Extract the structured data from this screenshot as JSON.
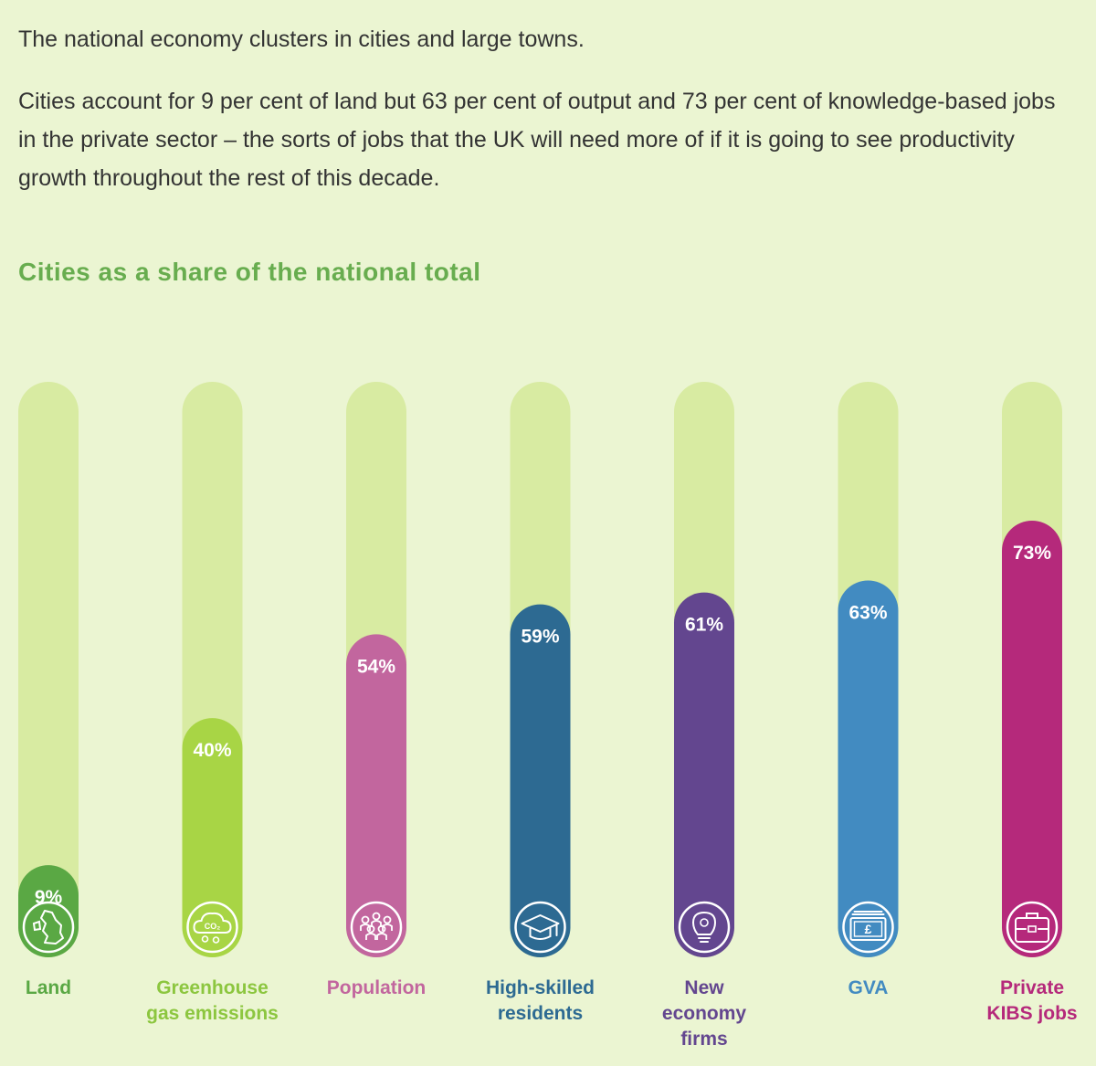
{
  "intro": {
    "paragraph1": "The national economy clusters in cities and large towns.",
    "paragraph2": "Cities account for 9 per cent of land but 63 per cent of output and 73 per cent of knowledge-based jobs in the private sector – the sorts of jobs that the UK will need more of if it is going to see productivity growth throughout the rest of this decade."
  },
  "colors": {
    "background": "#ebf5d2",
    "track": "#d8eba2",
    "title": "#68ad4f",
    "text": "#333333"
  },
  "chart_data": {
    "type": "bar",
    "title": "Cities as a share of the national total",
    "xlabel": "",
    "ylabel": "",
    "ylim": [
      0,
      100
    ],
    "unit": "%",
    "grid": false,
    "categories": [
      {
        "label_lines": [
          "Land"
        ],
        "value": 9,
        "display": "9%",
        "color": "#5aa844",
        "label_color": "#5aa844",
        "icon": "uk-map-icon"
      },
      {
        "label_lines": [
          "Greenhouse",
          "gas emissions"
        ],
        "value": 40,
        "display": "40%",
        "color": "#a8d545",
        "label_color": "#8cc63f",
        "icon": "co2-cloud-icon"
      },
      {
        "label_lines": [
          "Population"
        ],
        "value": 54,
        "display": "54%",
        "color": "#c2669e",
        "label_color": "#c2669e",
        "icon": "people-icon"
      },
      {
        "label_lines": [
          "High-skilled",
          "residents"
        ],
        "value": 59,
        "display": "59%",
        "color": "#2d6a92",
        "label_color": "#2d6a92",
        "icon": "graduation-cap-icon"
      },
      {
        "label_lines": [
          "New",
          "economy",
          "firms"
        ],
        "value": 61,
        "display": "61%",
        "color": "#63468f",
        "label_color": "#63468f",
        "icon": "lightbulb-icon"
      },
      {
        "label_lines": [
          "GVA"
        ],
        "value": 63,
        "display": "63%",
        "color": "#428bc1",
        "label_color": "#428bc1",
        "icon": "banknote-icon"
      },
      {
        "label_lines": [
          "Private",
          "KIBS jobs"
        ],
        "value": 73,
        "display": "73%",
        "color": "#b5297b",
        "label_color": "#b5297b",
        "icon": "briefcase-icon"
      }
    ]
  }
}
